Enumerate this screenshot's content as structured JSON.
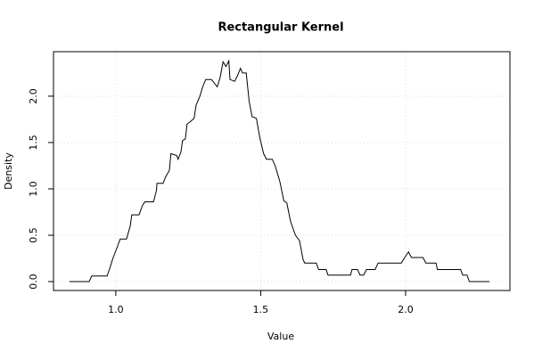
{
  "chart_data": {
    "type": "line",
    "title": "Rectangular Kernel",
    "x_label": "Value",
    "y_label": "Density",
    "x": [
      0.84,
      0.908,
      0.917,
      0.97,
      0.98,
      0.99,
      1.006,
      1.015,
      1.037,
      1.05,
      1.055,
      1.08,
      1.092,
      1.1,
      1.13,
      1.14,
      1.142,
      1.163,
      1.172,
      1.185,
      1.19,
      1.2,
      1.21,
      1.215,
      1.225,
      1.23,
      1.24,
      1.246,
      1.255,
      1.27,
      1.277,
      1.29,
      1.3,
      1.31,
      1.33,
      1.35,
      1.36,
      1.37,
      1.38,
      1.39,
      1.394,
      1.41,
      1.42,
      1.43,
      1.437,
      1.45,
      1.46,
      1.47,
      1.485,
      1.497,
      1.51,
      1.52,
      1.54,
      1.55,
      1.566,
      1.58,
      1.59,
      1.603,
      1.62,
      1.634,
      1.646,
      1.652,
      1.692,
      1.7,
      1.726,
      1.732,
      1.81,
      1.815,
      1.834,
      1.843,
      1.855,
      1.865,
      1.895,
      1.905,
      1.985,
      1.997,
      2.01,
      2.02,
      2.06,
      2.07,
      2.105,
      2.11,
      2.19,
      2.197,
      2.212,
      2.22,
      2.29
    ],
    "series": [
      {
        "color": "#000000",
        "values": [
          0,
          0,
          0.06,
          0.06,
          0.15,
          0.25,
          0.38,
          0.46,
          0.46,
          0.6,
          0.72,
          0.72,
          0.82,
          0.86,
          0.86,
          0.98,
          1.06,
          1.06,
          1.13,
          1.2,
          1.38,
          1.37,
          1.36,
          1.32,
          1.4,
          1.52,
          1.54,
          1.7,
          1.72,
          1.76,
          1.9,
          2.0,
          2.1,
          2.18,
          2.18,
          2.1,
          2.2,
          2.37,
          2.32,
          2.38,
          2.18,
          2.16,
          2.22,
          2.3,
          2.25,
          2.25,
          1.95,
          1.78,
          1.76,
          1.55,
          1.38,
          1.32,
          1.32,
          1.25,
          1.08,
          0.87,
          0.85,
          0.65,
          0.5,
          0.44,
          0.24,
          0.2,
          0.2,
          0.13,
          0.13,
          0.07,
          0.07,
          0.13,
          0.13,
          0.07,
          0.07,
          0.13,
          0.13,
          0.2,
          0.2,
          0.26,
          0.32,
          0.26,
          0.26,
          0.2,
          0.2,
          0.13,
          0.13,
          0.07,
          0.07,
          0,
          0
        ]
      }
    ],
    "xlim": [
      0.785,
      2.36
    ],
    "ylim": [
      -0.096,
      2.48
    ],
    "xticks": [
      {
        "value": 1,
        "label": "1.0"
      },
      1.5,
      {
        "value": 2,
        "label": "2.0"
      }
    ],
    "yticks": [
      {
        "value": 0,
        "label": "0.0"
      },
      0.5,
      {
        "value": 1,
        "label": "1.0"
      },
      1.5,
      {
        "value": 2,
        "label": "2.0"
      }
    ],
    "grid": true
  }
}
